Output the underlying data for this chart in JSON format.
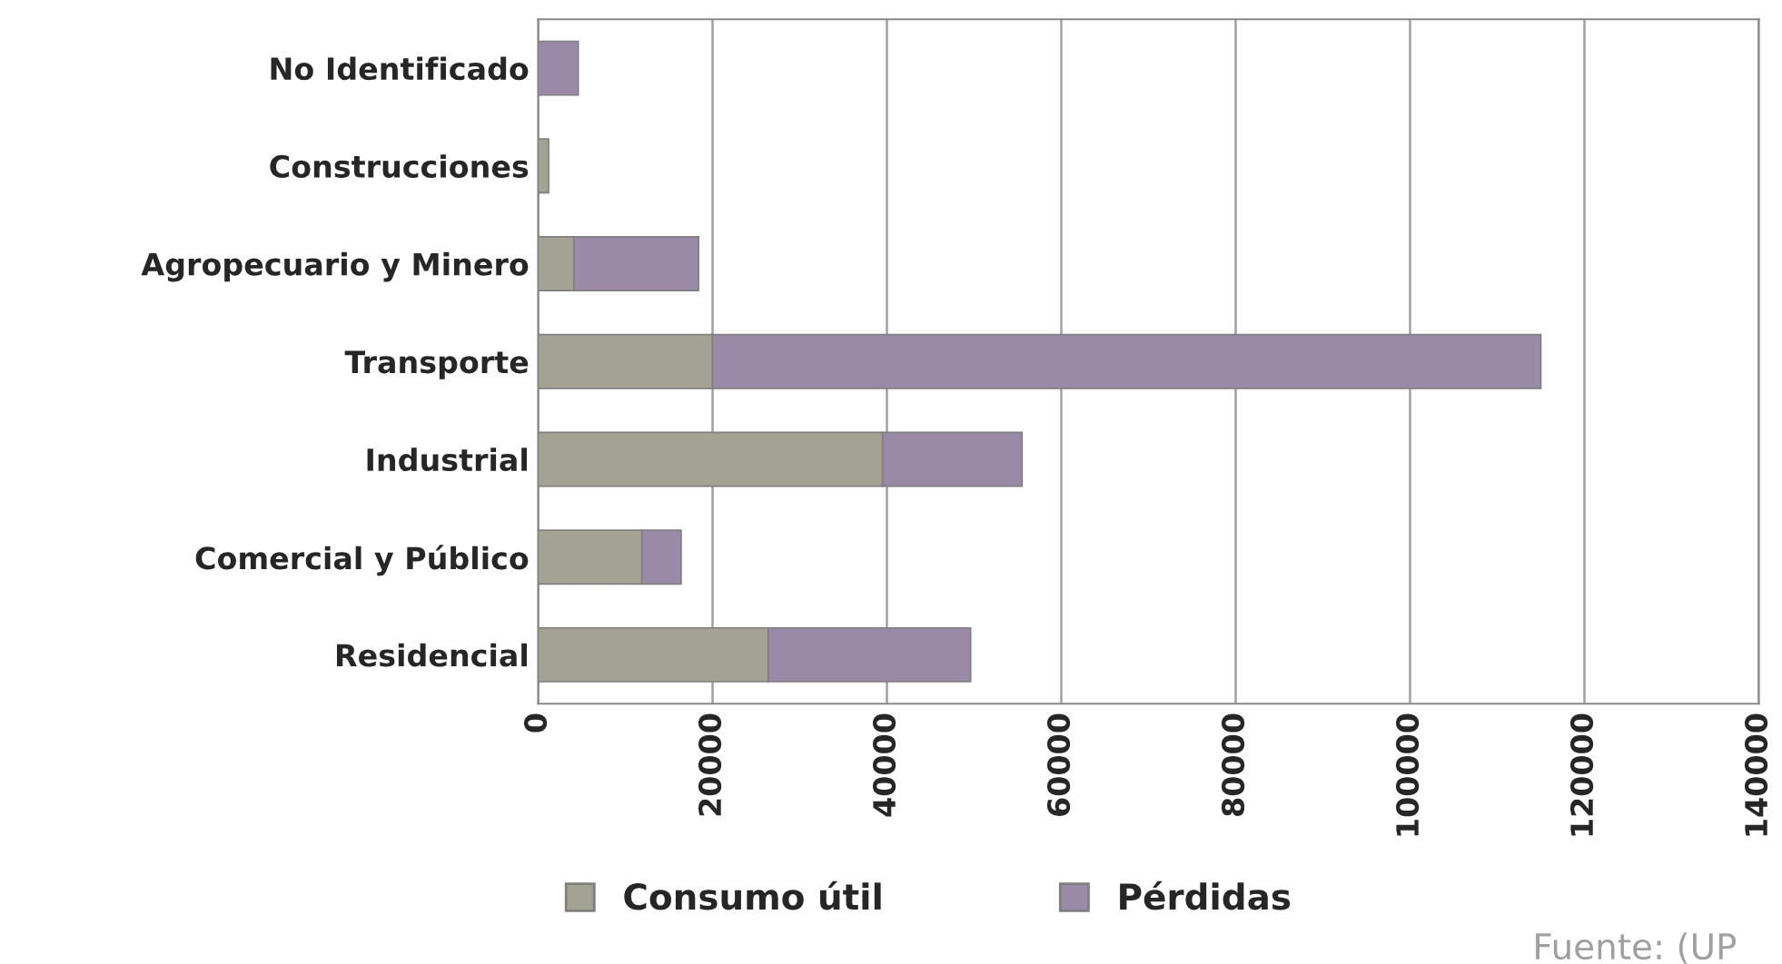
{
  "chart_data": {
    "type": "bar",
    "orientation": "horizontal",
    "stacked": true,
    "categories": [
      "No Identificado",
      "Construcciones",
      "Agropecuario y Minero",
      "Transporte",
      "Industrial",
      "Comercial y Público",
      "Residencial"
    ],
    "series": [
      {
        "name": "Consumo útil",
        "color": "#a3a293",
        "values": [
          null,
          1200,
          4100,
          20000,
          39500,
          11900,
          26400
        ]
      },
      {
        "name": "Pérdidas",
        "color": "#9a8aa8",
        "values": [
          4600,
          null,
          14300,
          95000,
          16000,
          4500,
          23200
        ]
      }
    ],
    "xlim": [
      0,
      140000
    ],
    "xticks": [
      0,
      20000,
      40000,
      60000,
      80000,
      100000,
      120000,
      140000
    ],
    "grid": "x",
    "legend": "bottom",
    "annotations": [
      "Fuente: (UP"
    ]
  }
}
